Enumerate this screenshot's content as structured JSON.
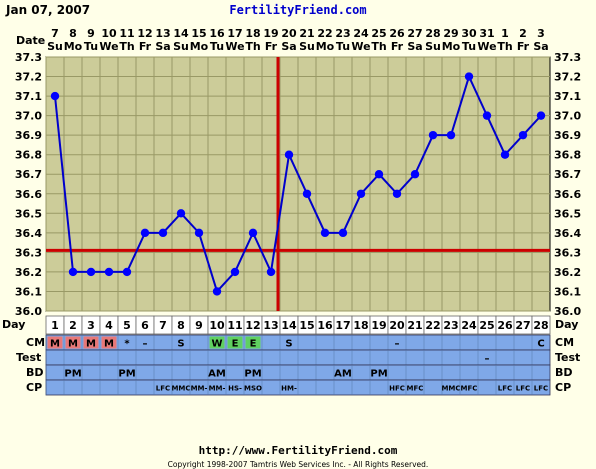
{
  "header": {
    "date": "Jan 07, 2007",
    "site": "FertilityFriend.com"
  },
  "footer": {
    "url": "http://www.FertilityFriend.com",
    "copyright": "Copyright 1998-2007 Tamtris Web Services Inc. - All Rights Reserved."
  },
  "row_labels": {
    "date": "Date",
    "day": "Day",
    "cm": "CM",
    "test": "Test",
    "bd": "BD",
    "cp": "CP"
  },
  "colors": {
    "background": "#ffffe8",
    "plot_background": "#cccc99",
    "grid": "#999966",
    "line": "#0000cc",
    "marker": "#0000ff",
    "coverline": "#cc0000",
    "ovulation_line": "#cc0000",
    "row_fill": "#7fa8e8",
    "cm_m": "#e87878",
    "cm_green": "#60d060",
    "site": "#0000cc"
  },
  "chart_data": {
    "type": "line",
    "dates": [
      "7",
      "8",
      "9",
      "10",
      "11",
      "12",
      "13",
      "14",
      "15",
      "16",
      "17",
      "18",
      "19",
      "20",
      "21",
      "22",
      "23",
      "24",
      "25",
      "26",
      "27",
      "28",
      "29",
      "30",
      "31",
      "1",
      "2",
      "3"
    ],
    "weekdays": [
      "Su",
      "Mo",
      "Tu",
      "We",
      "Th",
      "Fr",
      "Sa",
      "Su",
      "Mo",
      "Tu",
      "We",
      "Th",
      "Fr",
      "Sa",
      "Su",
      "Mo",
      "Tu",
      "We",
      "Th",
      "Fr",
      "Sa",
      "Su",
      "Mo",
      "Tu",
      "We",
      "Th",
      "Fr",
      "Sa"
    ],
    "cycle_days": [
      "1",
      "2",
      "3",
      "4",
      "5",
      "6",
      "7",
      "8",
      "9",
      "10",
      "11",
      "12",
      "13",
      "14",
      "15",
      "16",
      "17",
      "18",
      "19",
      "20",
      "21",
      "22",
      "23",
      "24",
      "25",
      "26",
      "27",
      "28"
    ],
    "series": [
      {
        "values": [
          37.1,
          36.2,
          36.2,
          36.2,
          36.2,
          36.4,
          36.4,
          36.5,
          36.4,
          36.1,
          36.2,
          36.4,
          36.2,
          36.8,
          36.6,
          36.4,
          36.4,
          36.6,
          36.7,
          36.6,
          36.7,
          36.9,
          36.9,
          37.2,
          37.0,
          36.8,
          36.9,
          37.0
        ]
      }
    ],
    "ylim": [
      36.0,
      37.3
    ],
    "yticks": [
      "36.0",
      "36.1",
      "36.2",
      "36.3",
      "36.4",
      "36.5",
      "36.6",
      "36.7",
      "36.8",
      "36.9",
      "37.0",
      "37.1",
      "37.2",
      "37.3"
    ],
    "coverline": 36.31,
    "ovulation_day": 13,
    "cm": [
      "M",
      "M",
      "M",
      "M",
      "*",
      "–",
      "",
      "S",
      "",
      "W",
      "E",
      "E",
      "",
      "S",
      "",
      "",
      "",
      "",
      "",
      "–",
      "",
      "",
      "",
      "",
      "",
      "",
      "",
      "C"
    ],
    "test": [
      "",
      "",
      "",
      "",
      "",
      "",
      "",
      "",
      "",
      "",
      "",
      "",
      "",
      "",
      "",
      "",
      "",
      "",
      "",
      "",
      "",
      "",
      "",
      "",
      "–",
      "",
      "",
      ""
    ],
    "bd": [
      "",
      "PM",
      "",
      "",
      "PM",
      "",
      "",
      "",
      "",
      "AM",
      "",
      "PM",
      "",
      "",
      "",
      "",
      "AM",
      "",
      "PM",
      "",
      "",
      "",
      "",
      "",
      "",
      "",
      "",
      ""
    ],
    "cp": [
      "",
      "",
      "",
      "",
      "",
      "",
      "LFC",
      "MMC",
      "MM-",
      "MM-",
      "HS-",
      "MSO",
      "",
      "HM-",
      "",
      "",
      "",
      "",
      "",
      "HFC",
      "MFC",
      "",
      "MMC",
      "MFC",
      "",
      "LFC",
      "LFC",
      "LFC"
    ]
  }
}
